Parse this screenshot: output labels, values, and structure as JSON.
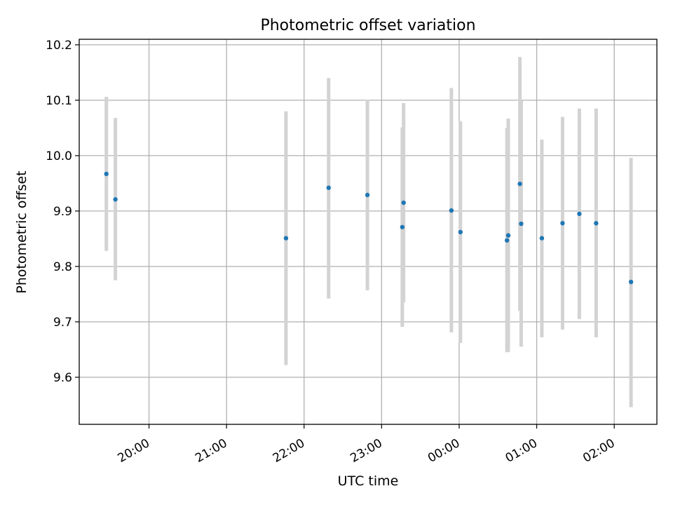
{
  "chart_data": {
    "type": "scatter",
    "title": "Photometric offset variation",
    "xlabel": "UTC time",
    "ylabel": "Photometric offset",
    "x_scale": "time",
    "xlim": [
      "19:06",
      "02:33"
    ],
    "ylim": [
      9.515,
      10.21
    ],
    "xticks": [
      "20:00",
      "21:00",
      "22:00",
      "23:00",
      "00:00",
      "01:00",
      "02:00"
    ],
    "yticks": [
      "9.6",
      "9.7",
      "9.8",
      "9.9",
      "10.0",
      "10.1",
      "10.2"
    ],
    "grid": true,
    "colors": {
      "marker": "#1f77b4",
      "errorbar": "#d3d3d3",
      "grid": "#b0b0b0"
    },
    "points": [
      {
        "x": "19:27",
        "y": 9.967,
        "ylow": 9.828,
        "yhigh": 10.106
      },
      {
        "x": "19:34",
        "y": 9.921,
        "ylow": 9.775,
        "yhigh": 10.068
      },
      {
        "x": "21:46",
        "y": 9.851,
        "ylow": 9.622,
        "yhigh": 10.08
      },
      {
        "x": "22:19",
        "y": 9.942,
        "ylow": 9.742,
        "yhigh": 10.14
      },
      {
        "x": "22:49",
        "y": 9.929,
        "ylow": 9.757,
        "yhigh": 10.101
      },
      {
        "x": "23:16",
        "y": 9.871,
        "ylow": 9.691,
        "yhigh": 10.051
      },
      {
        "x": "23:17",
        "y": 9.915,
        "ylow": 9.735,
        "yhigh": 10.095
      },
      {
        "x": "23:54",
        "y": 9.901,
        "ylow": 9.681,
        "yhigh": 10.122
      },
      {
        "x": "00:01",
        "y": 9.862,
        "ylow": 9.662,
        "yhigh": 10.062
      },
      {
        "x": "00:37",
        "y": 9.847,
        "ylow": 9.645,
        "yhigh": 10.05
      },
      {
        "x": "00:38",
        "y": 9.856,
        "ylow": 9.646,
        "yhigh": 10.067
      },
      {
        "x": "00:47",
        "y": 9.949,
        "ylow": 9.72,
        "yhigh": 10.178
      },
      {
        "x": "00:48",
        "y": 9.877,
        "ylow": 9.655,
        "yhigh": 10.099
      },
      {
        "x": "01:04",
        "y": 9.851,
        "ylow": 9.672,
        "yhigh": 10.029
      },
      {
        "x": "01:20",
        "y": 9.878,
        "ylow": 9.686,
        "yhigh": 10.07
      },
      {
        "x": "01:33",
        "y": 9.895,
        "ylow": 9.705,
        "yhigh": 10.085
      },
      {
        "x": "01:46",
        "y": 9.878,
        "ylow": 9.672,
        "yhigh": 10.085
      },
      {
        "x": "02:13",
        "y": 9.772,
        "ylow": 9.546,
        "yhigh": 9.996
      }
    ]
  }
}
